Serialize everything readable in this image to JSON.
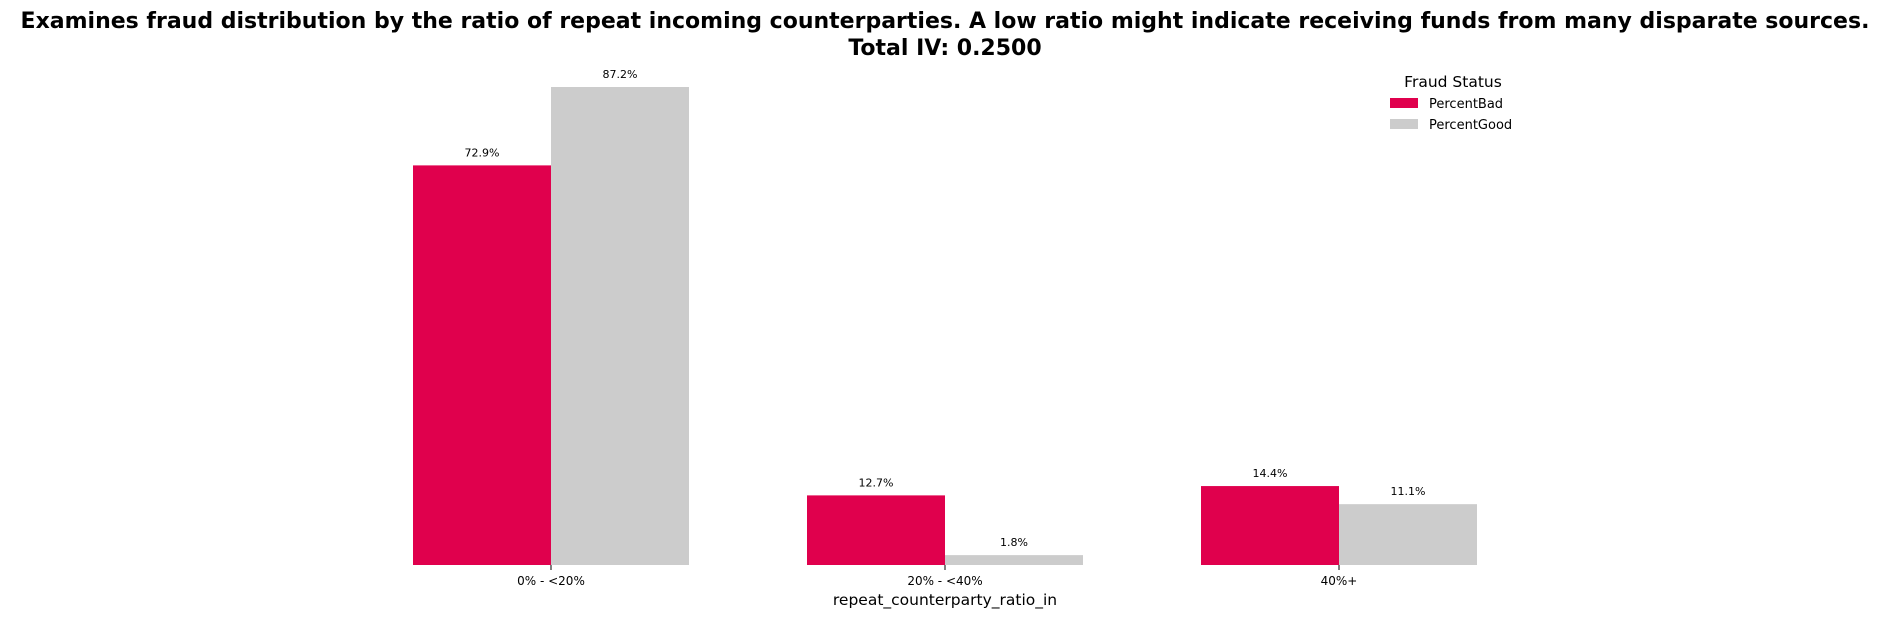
{
  "chart_data": {
    "type": "bar",
    "title_line1": "Examines fraud distribution by the ratio of repeat incoming counterparties. A low ratio might indicate receiving funds from many disparate sources.",
    "title_line2": "Total IV: 0.2500",
    "xlabel": "repeat_counterparty_ratio_in",
    "ylabel": "",
    "categories": [
      "0% - <20%",
      "20% - <40%",
      "40%+"
    ],
    "series": [
      {
        "name": "PercentBad",
        "color": "#e0004d",
        "values": [
          72.9,
          12.7,
          14.4
        ],
        "labels": [
          "72.9%",
          "12.7%",
          "14.4%"
        ]
      },
      {
        "name": "PercentGood",
        "color": "#cccccc",
        "values": [
          87.2,
          1.8,
          11.1
        ],
        "labels": [
          "87.2%",
          "1.8%",
          "11.1%"
        ]
      }
    ],
    "ylim": [
      0,
      87.2
    ],
    "grid": false,
    "legend": {
      "title": "Fraud Status",
      "placement": "top-right"
    }
  }
}
